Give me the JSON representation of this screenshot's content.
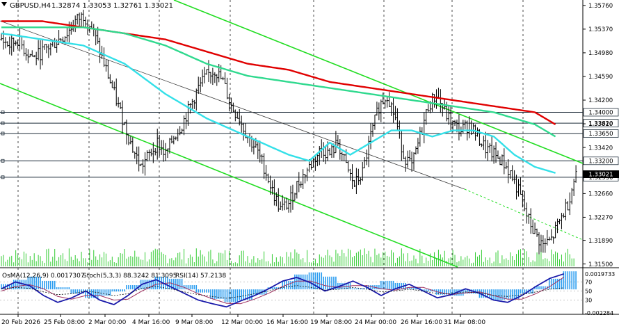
{
  "header": {
    "symbol_label": "GBPUSD,H4",
    "ohlc": "1.32874 1.33053 1.32761 1.33021"
  },
  "indicator_header": {
    "osma": "OsMA(12,26,9) 0.0017307",
    "stoch": "Stoch(5,3,3) 88.3242 81.3095",
    "rsi": "RSI(14) 57.2138"
  },
  "colors": {
    "background": "#ffffff",
    "bars": "#000000",
    "ema_fast": "#33e0e8",
    "ema_mid": "#2fd98e",
    "ema_slow": "#e00000",
    "channel": "#22dd22",
    "midline": "#3a3a3a",
    "level_line": "#1f2d3a",
    "histogram": "#2b9df0",
    "stoch_main": "#1a1aaa",
    "stoch_signal": "#a03060",
    "rsi": "#111111",
    "current_price_tag": "#000000"
  },
  "chart_data": {
    "type": "candlestick",
    "symbol": "GBPUSD",
    "timeframe": "H4",
    "price_axis_ticks": [
      "1.35760",
      "1.35370",
      "1.34980",
      "1.34590",
      "1.34200",
      "1.33810",
      "1.33420",
      "1.32660",
      "1.32270",
      "1.31890",
      "1.31500"
    ],
    "price_ylim": [
      1.3145,
      1.3585
    ],
    "level_tags": [
      "1.34000",
      "1.33820",
      "1.33650",
      "1.33200",
      "1.32930"
    ],
    "current_price_tag": "1.33021",
    "x_axis_ticks": [
      "20 Feb 2026",
      "25 Feb 08:00",
      "2 Mar 00:00",
      "4 Mar 16:00",
      "9 Mar 08:00",
      "12 Mar 00:00",
      "16 Mar 16:00",
      "19 Mar 08:00",
      "24 Mar 00:00",
      "26 Mar 16:00",
      "31 Mar 08:00"
    ],
    "close_trace": [
      [
        0,
        1.352
      ],
      [
        4,
        1.351
      ],
      [
        8,
        1.352
      ],
      [
        12,
        1.35
      ],
      [
        16,
        1.349
      ],
      [
        20,
        1.35
      ],
      [
        24,
        1.351
      ],
      [
        28,
        1.352
      ],
      [
        32,
        1.353
      ],
      [
        36,
        1.355
      ],
      [
        40,
        1.356
      ],
      [
        44,
        1.354
      ],
      [
        48,
        1.35
      ],
      [
        52,
        1.346
      ],
      [
        56,
        1.342
      ],
      [
        60,
        1.338
      ],
      [
        64,
        1.334
      ],
      [
        68,
        1.331
      ],
      [
        72,
        1.333
      ],
      [
        76,
        1.335
      ],
      [
        80,
        1.333
      ],
      [
        84,
        1.336
      ],
      [
        88,
        1.338
      ],
      [
        92,
        1.341
      ],
      [
        96,
        1.344
      ],
      [
        100,
        1.346
      ],
      [
        104,
        1.347
      ],
      [
        108,
        1.345
      ],
      [
        112,
        1.341
      ],
      [
        116,
        1.339
      ],
      [
        120,
        1.336
      ],
      [
        124,
        1.334
      ],
      [
        128,
        1.331
      ],
      [
        132,
        1.327
      ],
      [
        136,
        1.324
      ],
      [
        140,
        1.325
      ],
      [
        144,
        1.328
      ],
      [
        148,
        1.33
      ],
      [
        152,
        1.332
      ],
      [
        156,
        1.334
      ],
      [
        160,
        1.333
      ],
      [
        164,
        1.335
      ],
      [
        168,
        1.331
      ],
      [
        172,
        1.328
      ],
      [
        176,
        1.33
      ],
      [
        180,
        1.336
      ],
      [
        184,
        1.341
      ],
      [
        188,
        1.343
      ],
      [
        192,
        1.339
      ],
      [
        196,
        1.333
      ],
      [
        200,
        1.331
      ],
      [
        204,
        1.336
      ],
      [
        208,
        1.341
      ],
      [
        212,
        1.343
      ],
      [
        216,
        1.34
      ],
      [
        220,
        1.338
      ],
      [
        224,
        1.337
      ],
      [
        228,
        1.338
      ],
      [
        232,
        1.336
      ],
      [
        236,
        1.334
      ],
      [
        240,
        1.333
      ],
      [
        244,
        1.332
      ],
      [
        248,
        1.33
      ],
      [
        252,
        1.327
      ],
      [
        256,
        1.323
      ],
      [
        260,
        1.32
      ],
      [
        264,
        1.318
      ],
      [
        268,
        1.319
      ],
      [
        272,
        1.322
      ],
      [
        276,
        1.325
      ],
      [
        280,
        1.33
      ]
    ],
    "ema_fast_trace": [
      [
        0,
        1.353
      ],
      [
        20,
        1.352
      ],
      [
        40,
        1.351
      ],
      [
        60,
        1.348
      ],
      [
        80,
        1.343
      ],
      [
        100,
        1.339
      ],
      [
        120,
        1.336
      ],
      [
        140,
        1.333
      ],
      [
        150,
        1.332
      ],
      [
        160,
        1.335
      ],
      [
        170,
        1.333
      ],
      [
        180,
        1.335
      ],
      [
        190,
        1.337
      ],
      [
        200,
        1.337
      ],
      [
        210,
        1.336
      ],
      [
        220,
        1.337
      ],
      [
        230,
        1.337
      ],
      [
        240,
        1.336
      ],
      [
        250,
        1.333
      ],
      [
        260,
        1.331
      ],
      [
        270,
        1.33
      ]
    ],
    "ema_mid_trace": [
      [
        0,
        1.354
      ],
      [
        20,
        1.354
      ],
      [
        40,
        1.354
      ],
      [
        60,
        1.353
      ],
      [
        80,
        1.351
      ],
      [
        100,
        1.348
      ],
      [
        120,
        1.346
      ],
      [
        140,
        1.345
      ],
      [
        160,
        1.344
      ],
      [
        180,
        1.343
      ],
      [
        200,
        1.342
      ],
      [
        220,
        1.341
      ],
      [
        240,
        1.34
      ],
      [
        260,
        1.338
      ],
      [
        270,
        1.336
      ]
    ],
    "ema_slow_trace": [
      [
        0,
        1.355
      ],
      [
        20,
        1.355
      ],
      [
        40,
        1.354
      ],
      [
        60,
        1.353
      ],
      [
        80,
        1.352
      ],
      [
        100,
        1.35
      ],
      [
        120,
        1.348
      ],
      [
        140,
        1.347
      ],
      [
        160,
        1.345
      ],
      [
        180,
        1.344
      ],
      [
        200,
        1.343
      ],
      [
        220,
        1.342
      ],
      [
        240,
        1.341
      ],
      [
        260,
        1.34
      ],
      [
        270,
        1.338
      ]
    ],
    "osma_histogram": [
      0.0005,
      0.0009,
      0.0012,
      0.0008,
      0.0002,
      -0.0004,
      -0.0008,
      -0.0006,
      -0.0002,
      0.0004,
      0.0009,
      0.0012,
      0.001,
      0.0004,
      -0.0003,
      -0.0009,
      -0.0012,
      -0.001,
      -0.0005,
      0.0002,
      0.0008,
      0.0014,
      0.0016,
      0.0012,
      0.0006,
      0.0001,
      0.0004,
      0.0008,
      0.0006,
      0.0002,
      -0.0002,
      -0.0005,
      -0.0006,
      -0.0004,
      -0.0008,
      -0.001,
      -0.0009,
      -0.0004,
      0.0003,
      0.001,
      0.0017
    ],
    "stoch_main": [
      55,
      70,
      62,
      40,
      25,
      35,
      50,
      30,
      20,
      40,
      65,
      75,
      60,
      45,
      30,
      22,
      15,
      28,
      40,
      55,
      72,
      80,
      68,
      50,
      60,
      72,
      58,
      40,
      55,
      65,
      50,
      35,
      42,
      55,
      45,
      30,
      25,
      40,
      60,
      78,
      88
    ],
    "stoch_signal": [
      50,
      60,
      64,
      55,
      38,
      32,
      40,
      40,
      30,
      32,
      50,
      65,
      68,
      58,
      44,
      33,
      23,
      22,
      32,
      45,
      60,
      72,
      72,
      62,
      58,
      62,
      62,
      55,
      52,
      58,
      58,
      48,
      42,
      46,
      48,
      40,
      32,
      32,
      44,
      60,
      81
    ],
    "rsi_trace": [
      55,
      58,
      56,
      48,
      42,
      44,
      50,
      46,
      40,
      44,
      56,
      60,
      55,
      48,
      42,
      38,
      34,
      38,
      44,
      50,
      58,
      62,
      58,
      52,
      54,
      58,
      54,
      48,
      50,
      54,
      50,
      44,
      44,
      48,
      46,
      40,
      38,
      42,
      48,
      54,
      57
    ],
    "indicator_axis_ticks": [
      "0.0019733",
      "70",
      "50",
      "30",
      "-0.002284"
    ]
  }
}
